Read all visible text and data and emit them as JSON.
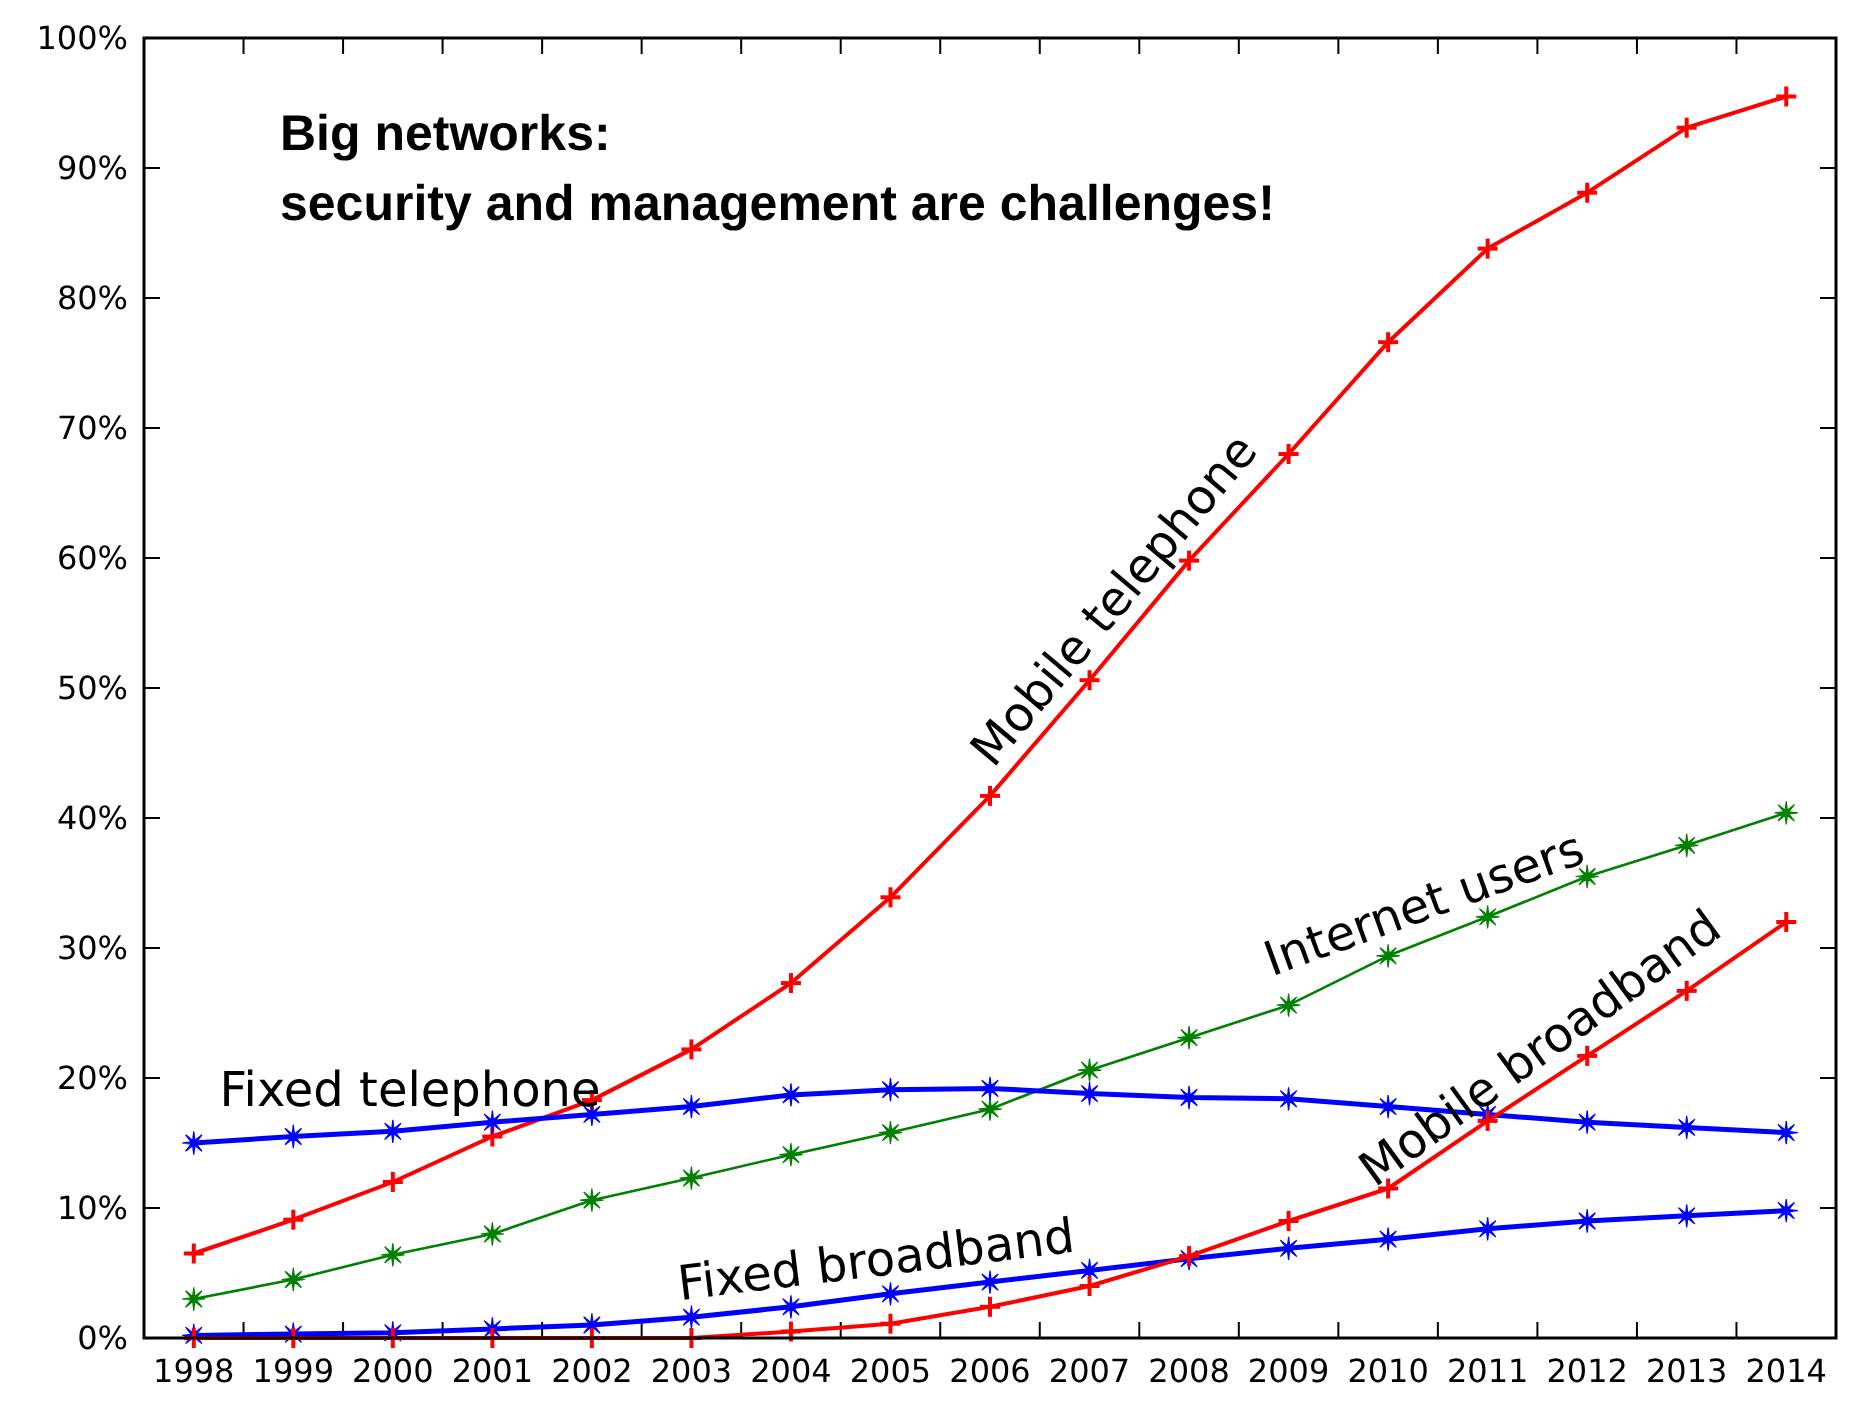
{
  "chart_data": {
    "type": "line",
    "title": "Big networks:",
    "subtitle": "security and management are challenges!",
    "categories": [
      "1998",
      "1999",
      "2000",
      "2001",
      "2002",
      "2003",
      "2004",
      "2005",
      "2006",
      "2007",
      "2008",
      "2009",
      "2010",
      "2011",
      "2012",
      "2013",
      "2014"
    ],
    "ylim": [
      0,
      100
    ],
    "yticks": [
      {
        "value": 0,
        "label": "0%"
      },
      {
        "value": 10,
        "label": "10%"
      },
      {
        "value": 20,
        "label": "20%"
      },
      {
        "value": 30,
        "label": "30%"
      },
      {
        "value": 40,
        "label": "40%"
      },
      {
        "value": 50,
        "label": "50%"
      },
      {
        "value": 60,
        "label": "60%"
      },
      {
        "value": 70,
        "label": "70%"
      },
      {
        "value": 80,
        "label": "80%"
      },
      {
        "value": 90,
        "label": "90%"
      },
      {
        "value": 100,
        "label": "100%"
      }
    ],
    "grid": false,
    "line_style": "solid",
    "series": [
      {
        "name": "Mobile telephone",
        "color": "#ff0000",
        "marker": "cross",
        "values": [
          6.5,
          9.1,
          12.0,
          15.5,
          18.3,
          22.2,
          27.3,
          33.9,
          41.7,
          50.6,
          59.8,
          68.0,
          76.6,
          83.8,
          88.1,
          93.1,
          95.5
        ]
      },
      {
        "name": "Internet users",
        "color": "#008000",
        "marker": "star",
        "values": [
          3.0,
          4.5,
          6.4,
          8.0,
          10.6,
          12.3,
          14.1,
          15.8,
          17.6,
          20.6,
          23.1,
          25.6,
          29.4,
          32.4,
          35.5,
          37.9,
          40.4
        ]
      },
      {
        "name": "Fixed telephone",
        "color": "#0000ff",
        "marker": "star",
        "values": [
          15.0,
          15.5,
          15.9,
          16.6,
          17.2,
          17.8,
          18.7,
          19.1,
          19.2,
          18.8,
          18.5,
          18.4,
          17.8,
          17.2,
          16.6,
          16.2,
          15.8
        ]
      },
      {
        "name": "Fixed broadband",
        "color": "#0000ff",
        "marker": "star",
        "values": [
          0.2,
          0.3,
          0.4,
          0.7,
          1.0,
          1.6,
          2.4,
          3.4,
          4.3,
          5.2,
          6.1,
          6.9,
          7.6,
          8.4,
          9.0,
          9.4,
          9.8
        ]
      },
      {
        "name": "Mobile broadband",
        "color": "#ff0000",
        "marker": "cross",
        "values": [
          0,
          0,
          0,
          0,
          0,
          0,
          0.5,
          1.1,
          2.4,
          4.0,
          6.3,
          9.0,
          11.5,
          16.7,
          21.7,
          26.7,
          32.0
        ]
      }
    ]
  }
}
